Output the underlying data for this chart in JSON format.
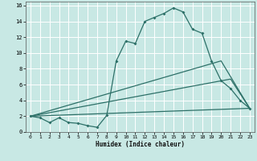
{
  "xlabel": "Humidex (Indice chaleur)",
  "bg_color": "#c8e8e4",
  "line_color": "#2d7068",
  "grid_color": "#ffffff",
  "xlim": [
    -0.5,
    23.5
  ],
  "ylim": [
    0,
    16.5
  ],
  "xticks": [
    0,
    1,
    2,
    3,
    4,
    5,
    6,
    7,
    8,
    9,
    10,
    11,
    12,
    13,
    14,
    15,
    16,
    17,
    18,
    19,
    20,
    21,
    22,
    23
  ],
  "yticks": [
    0,
    2,
    4,
    6,
    8,
    10,
    12,
    14,
    16
  ],
  "line1_x": [
    0,
    1,
    2,
    3,
    4,
    5,
    6,
    7,
    8,
    9,
    10,
    11,
    12,
    13,
    14,
    15,
    16,
    17,
    18,
    19,
    20,
    21,
    22,
    23
  ],
  "line1_y": [
    2.0,
    1.8,
    1.2,
    1.8,
    1.2,
    1.1,
    0.8,
    0.6,
    2.1,
    9.0,
    11.5,
    11.2,
    14.0,
    14.5,
    15.0,
    15.7,
    15.2,
    13.0,
    12.5,
    9.0,
    6.5,
    5.5,
    4.0,
    3.0
  ],
  "line2_x": [
    0,
    20,
    23
  ],
  "line2_y": [
    2.0,
    9.0,
    3.0
  ],
  "line3_x": [
    0,
    21,
    23
  ],
  "line3_y": [
    2.0,
    6.7,
    3.0
  ],
  "line4_x": [
    0,
    23
  ],
  "line4_y": [
    2.0,
    3.0
  ]
}
